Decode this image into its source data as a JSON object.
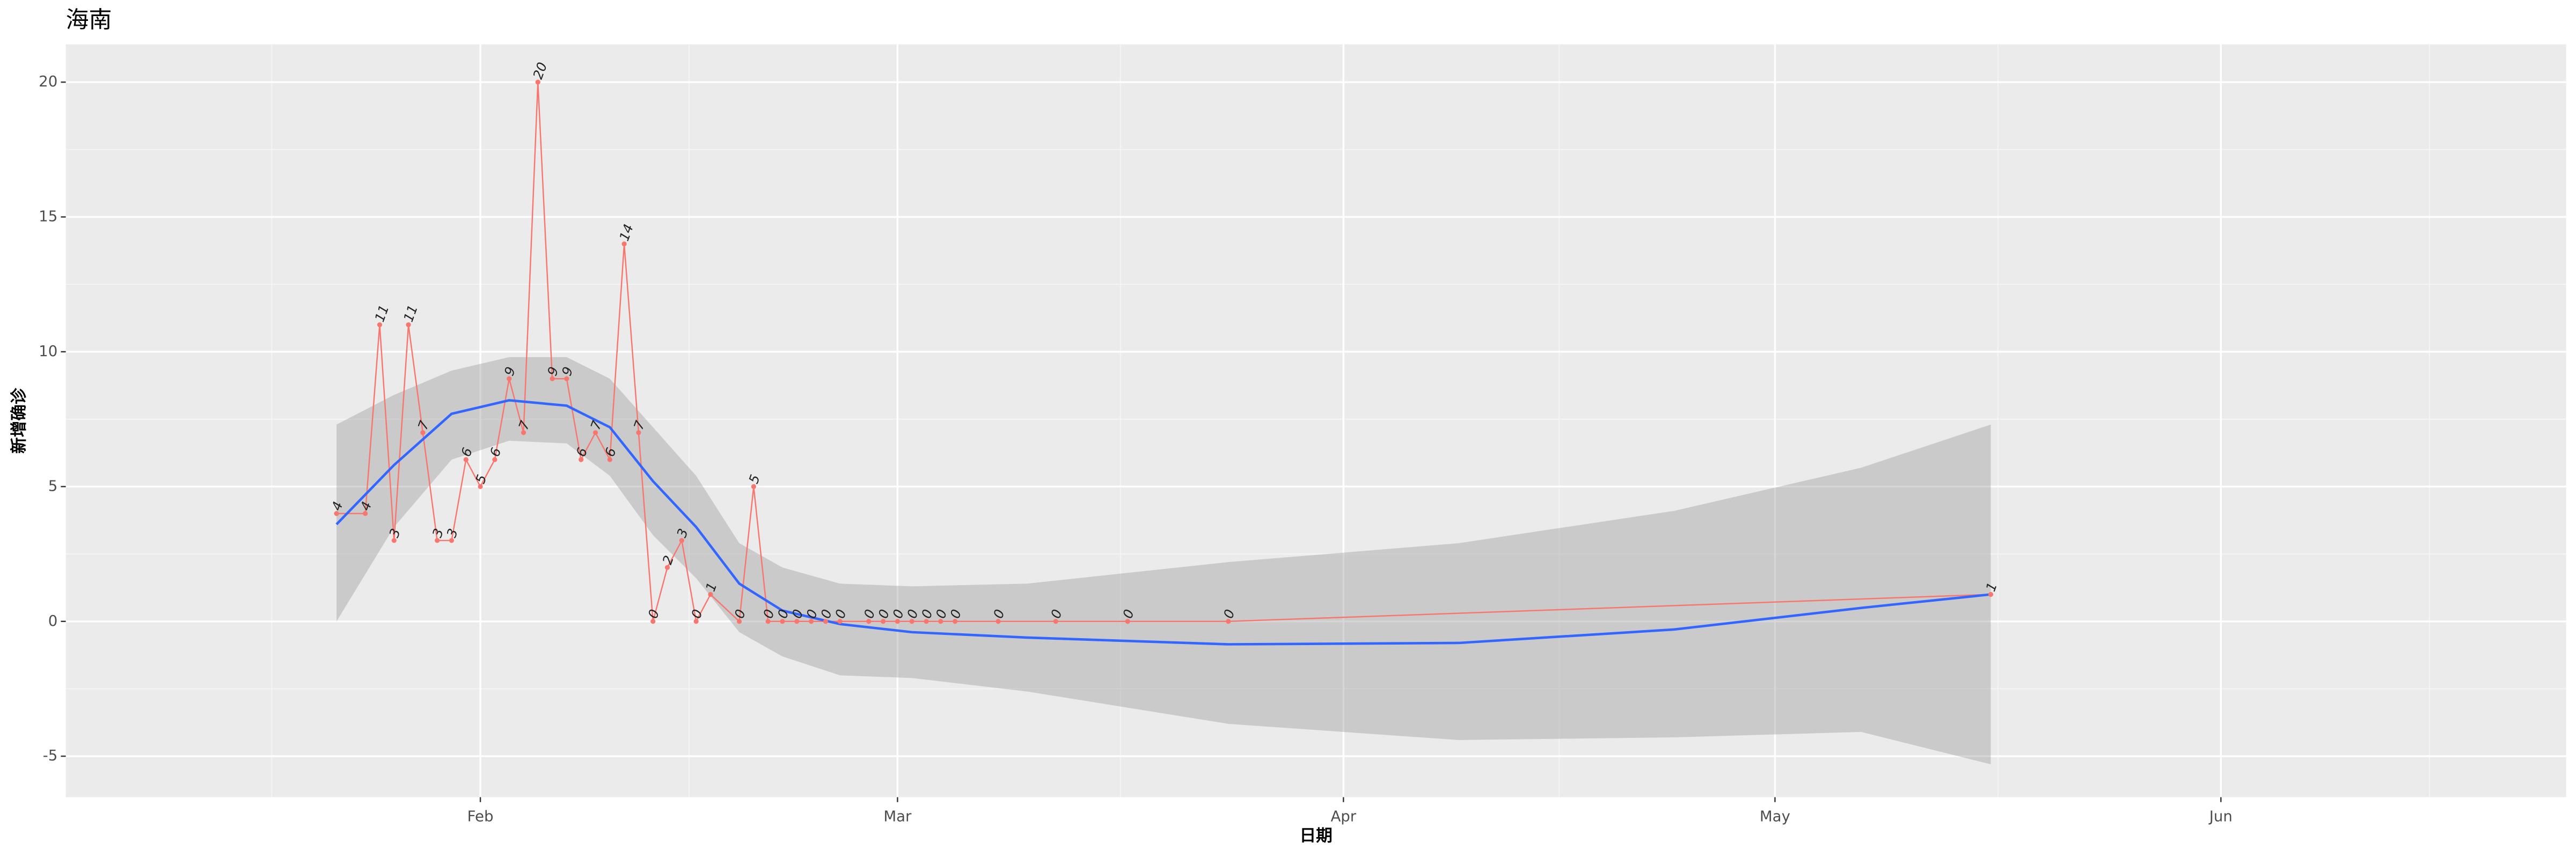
{
  "chart_data": {
    "type": "line",
    "title": "海南",
    "x_label": "日期",
    "y_label": "新增确诊",
    "x": [
      22,
      24,
      25,
      26,
      27,
      28,
      29,
      30,
      31,
      32,
      33,
      34,
      35,
      36,
      37,
      38,
      39,
      40,
      41,
      42,
      43,
      44,
      45,
      46,
      47,
      48,
      50,
      51,
      52,
      53,
      54,
      55,
      56,
      57,
      59,
      60,
      61,
      62,
      63,
      64,
      65,
      68,
      72,
      77,
      84,
      137
    ],
    "values": [
      4,
      4,
      11,
      3,
      11,
      7,
      3,
      3,
      6,
      5,
      6,
      9,
      7,
      20,
      9,
      9,
      6,
      7,
      6,
      14,
      7,
      0,
      2,
      3,
      0,
      1,
      0,
      5,
      0,
      0,
      0,
      0,
      0,
      0,
      0,
      0,
      0,
      0,
      0,
      0,
      0,
      0,
      0,
      0,
      0,
      1
    ],
    "color": "#f8766d",
    "smooth": {
      "x": [
        22,
        26,
        30,
        34,
        38,
        41,
        44,
        47,
        50,
        53,
        57,
        62,
        70,
        84,
        100,
        115,
        128,
        137
      ],
      "values": [
        3.6,
        5.8,
        7.7,
        8.2,
        8.0,
        7.2,
        5.2,
        3.5,
        1.4,
        0.4,
        -0.1,
        -0.4,
        -0.6,
        -0.85,
        -0.8,
        -0.3,
        0.5,
        1.0
      ],
      "lower": [
        0,
        3.5,
        6.0,
        6.7,
        6.6,
        5.4,
        3.2,
        1.6,
        -0.4,
        -1.3,
        -2.0,
        -2.1,
        -2.6,
        -3.8,
        -4.4,
        -4.3,
        -4.1,
        -5.3
      ],
      "upper": [
        7.3,
        8.4,
        9.3,
        9.8,
        9.8,
        9.0,
        7.2,
        5.4,
        2.9,
        2.0,
        1.4,
        1.3,
        1.4,
        2.2,
        2.9,
        4.1,
        5.7,
        7.3
      ],
      "color": "#3366ff",
      "band_color": "#999999"
    },
    "xlim": [
      3.18,
      177.0
    ],
    "xticks": [
      {
        "value": 32,
        "label": "Feb"
      },
      {
        "value": 61,
        "label": "Mar"
      },
      {
        "value": 92,
        "label": "Apr"
      },
      {
        "value": 122,
        "label": "May"
      },
      {
        "value": 153,
        "label": "Jun"
      }
    ],
    "ylim": [
      -6.52,
      21.4
    ],
    "yticks": [
      -5,
      0,
      5,
      10,
      15,
      20
    ],
    "grid": true
  }
}
